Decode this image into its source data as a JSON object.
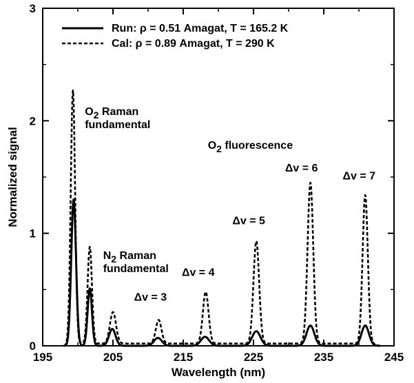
{
  "chart_data": {
    "type": "line",
    "title": "",
    "xlabel": "Wavelength (nm)",
    "ylabel": "Normalized signal",
    "xlim": [
      195,
      245
    ],
    "ylim": [
      0,
      3
    ],
    "x_ticks": [
      195,
      205,
      215,
      225,
      235,
      245
    ],
    "x_tick_labels": [
      "195",
      "205",
      "215",
      "225",
      "235",
      "245"
    ],
    "y_ticks": [
      0,
      1,
      2,
      3
    ],
    "y_tick_labels": [
      "0",
      "1",
      "2",
      "3"
    ],
    "grid": false,
    "legend_position": "top",
    "series": [
      {
        "name": "Run: ρ = 0.51 Amagat, T = 165.2 K",
        "style": "solid",
        "color": "#000000",
        "peaks": [
          {
            "x": 199.4,
            "y": 1.3,
            "width": 0.55
          },
          {
            "x": 201.7,
            "y": 0.51,
            "width": 0.5
          },
          {
            "x": 204.9,
            "y": 0.15,
            "width": 0.75
          },
          {
            "x": 211.4,
            "y": 0.07,
            "width": 0.9
          },
          {
            "x": 218.1,
            "y": 0.08,
            "width": 0.95
          },
          {
            "x": 225.4,
            "y": 0.13,
            "width": 0.95
          },
          {
            "x": 233.1,
            "y": 0.18,
            "width": 0.9
          },
          {
            "x": 240.9,
            "y": 0.18,
            "width": 0.85
          }
        ],
        "baseline": 0.0
      },
      {
        "name": "Cal: ρ = 0.89 Amagat, T = 290 K",
        "style": "dashed",
        "color": "#000000",
        "peaks": [
          {
            "x": 199.3,
            "y": 2.25,
            "width": 0.5
          },
          {
            "x": 201.7,
            "y": 0.86,
            "width": 0.5
          },
          {
            "x": 205.0,
            "y": 0.28,
            "width": 0.7
          },
          {
            "x": 211.5,
            "y": 0.21,
            "width": 0.65
          },
          {
            "x": 218.2,
            "y": 0.46,
            "width": 0.65
          },
          {
            "x": 225.4,
            "y": 0.91,
            "width": 0.65
          },
          {
            "x": 233.1,
            "y": 1.43,
            "width": 0.65
          },
          {
            "x": 240.9,
            "y": 1.32,
            "width": 0.6
          }
        ],
        "baseline": 0.02
      }
    ],
    "annotations": [
      {
        "id": "o2-raman",
        "lines": [
          {
            "parts": [
              [
                "O",
                "normal"
              ],
              [
                "2",
                "sub"
              ],
              [
                " Raman",
                "normal"
              ]
            ]
          },
          {
            "parts": [
              [
                "fundamental",
                "normal"
              ]
            ]
          }
        ],
        "x": 201.0,
        "y": 2.05
      },
      {
        "id": "n2-raman",
        "lines": [
          {
            "parts": [
              [
                "N",
                "normal"
              ],
              [
                "2",
                "sub"
              ],
              [
                " Raman",
                "normal"
              ]
            ]
          },
          {
            "parts": [
              [
                "fundamental",
                "normal"
              ]
            ]
          }
        ],
        "x": 203.6,
        "y": 0.77
      },
      {
        "id": "o2-fluorescence",
        "lines": [
          {
            "parts": [
              [
                "O",
                "normal"
              ],
              [
                "2",
                "sub"
              ],
              [
                " fluorescence",
                "normal"
              ]
            ]
          }
        ],
        "x": 218.5,
        "y": 1.75
      },
      {
        "id": "dv3",
        "lines": [
          {
            "parts": [
              [
                "Δv = 3",
                "normal"
              ]
            ]
          }
        ],
        "x": 208.0,
        "y": 0.4
      },
      {
        "id": "dv4",
        "lines": [
          {
            "parts": [
              [
                "Δv = 4",
                "normal"
              ]
            ]
          }
        ],
        "x": 214.8,
        "y": 0.62
      },
      {
        "id": "dv5",
        "lines": [
          {
            "parts": [
              [
                "Δv = 5",
                "normal"
              ]
            ]
          }
        ],
        "x": 222.0,
        "y": 1.08
      },
      {
        "id": "dv6",
        "lines": [
          {
            "parts": [
              [
                "Δv = 6",
                "normal"
              ]
            ]
          }
        ],
        "x": 229.5,
        "y": 1.55
      },
      {
        "id": "dv7",
        "lines": [
          {
            "parts": [
              [
                "Δv = 7",
                "normal"
              ]
            ]
          }
        ],
        "x": 237.7,
        "y": 1.48
      }
    ]
  }
}
